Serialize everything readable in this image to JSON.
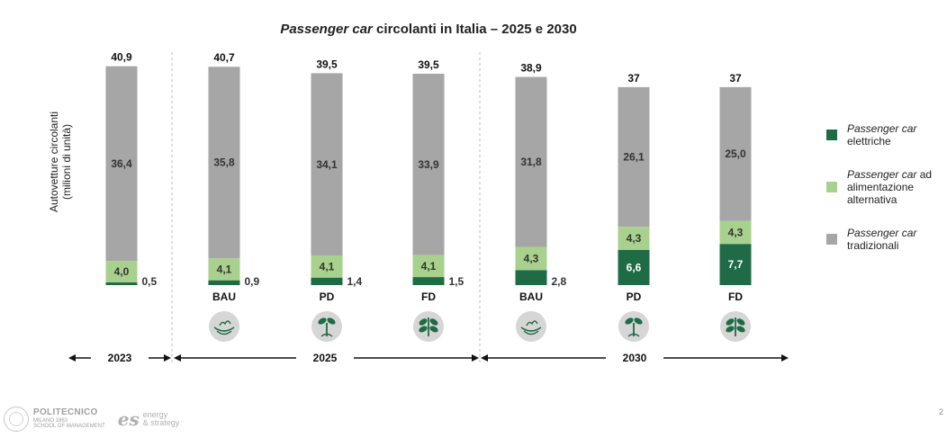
{
  "chart_data": {
    "type": "bar",
    "stacked": true,
    "title_parts": {
      "italic": "Passenger car",
      "rest": " circolanti in Italia – 2025 e 2030"
    },
    "ylabel_lines": [
      "Autovetture circolanti",
      "(milioni di unità)"
    ],
    "categories": [
      "",
      "BAU",
      "PD",
      "FD",
      "BAU",
      "PD",
      "FD"
    ],
    "series": [
      {
        "key": "elettriche",
        "color": "#1f6b45",
        "values": [
          0.5,
          0.9,
          1.4,
          1.5,
          2.8,
          6.6,
          7.7
        ],
        "labels": [
          "0,5",
          "0,9",
          "1,4",
          "1,5",
          "2,8",
          "6,6",
          "7,7"
        ]
      },
      {
        "key": "alternativa",
        "color": "#a9d18e",
        "values": [
          4.0,
          4.1,
          4.1,
          4.1,
          4.3,
          4.3,
          4.3
        ],
        "labels": [
          "4,0",
          "4,1",
          "4,1",
          "4,1",
          "4,3",
          "4,3",
          "4,3"
        ]
      },
      {
        "key": "tradizionali",
        "color": "#a6a6a6",
        "values": [
          36.4,
          35.8,
          34.1,
          33.9,
          31.8,
          26.1,
          25.0
        ],
        "labels": [
          "36,4",
          "35,8",
          "34,1",
          "33,9",
          "31,8",
          "26,1",
          "25,0"
        ]
      }
    ],
    "totals": [
      "40,9",
      "40,7",
      "39,5",
      "39,5",
      "38,9",
      "37",
      "37"
    ],
    "legend": [
      {
        "italic": "Passenger car",
        "lines": [
          "elettriche"
        ],
        "color": "#1f6b45"
      },
      {
        "italic": "Passenger car",
        "first_suffix": " ad",
        "lines": [
          "alimentazione",
          "alternativa"
        ],
        "color": "#a9d18e"
      },
      {
        "italic": "Passenger car",
        "lines": [
          "tradizionali"
        ],
        "color": "#a6a6a6"
      }
    ],
    "legend_position": "right",
    "icons": [
      "",
      "soil-icon",
      "sprout-icon",
      "plant-icon",
      "soil-icon",
      "sprout-icon",
      "plant-icon"
    ],
    "timeline": [
      {
        "label": "2023"
      },
      {
        "label": "2025"
      },
      {
        "label": "2030"
      }
    ],
    "grid": false
  },
  "footer": {
    "poli_name": "POLITECNICO",
    "poli_sub1": "MILANO 1863",
    "poli_sub2": "SCHOOL OF MANAGEMENT",
    "es_mark": "es",
    "es_line1": "energy",
    "es_line2": "& strategy",
    "page_number": "2"
  }
}
